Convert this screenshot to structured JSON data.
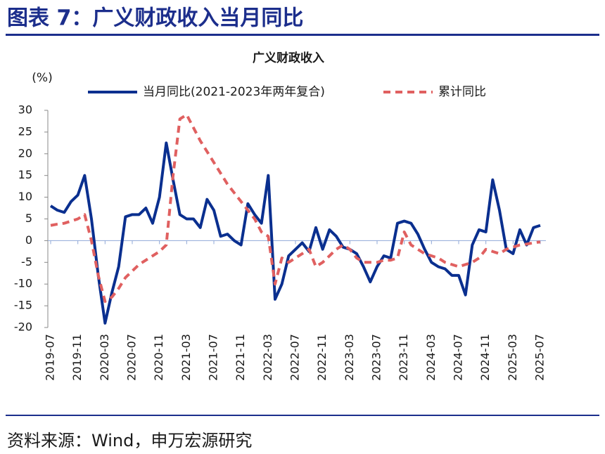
{
  "header": {
    "title": "图表 7：广义财政收入当月同比"
  },
  "chart_data": {
    "type": "line",
    "title": "广义财政收入",
    "ylabel": "(%)",
    "categories": [
      "2019-07",
      null,
      null,
      null,
      "2019-11",
      null,
      null,
      null,
      "2020-03",
      null,
      null,
      null,
      "2020-07",
      null,
      null,
      null,
      "2020-11",
      null,
      null,
      null,
      "2021-03",
      null,
      null,
      null,
      "2021-07",
      null,
      null,
      null,
      "2021-11",
      null,
      null,
      null,
      "2022-03",
      null,
      null,
      null,
      "2022-07",
      null,
      null,
      null,
      "2022-11",
      null,
      null,
      null,
      "2023-03",
      null,
      null,
      null,
      "2023-07",
      null,
      null,
      null,
      "2023-11",
      null,
      null,
      null,
      "2024-03",
      null,
      null,
      null,
      "2024-07",
      null,
      null,
      null,
      "2024-11",
      null,
      null,
      null,
      "2025-03",
      null,
      null,
      null,
      "2025-07"
    ],
    "series": [
      {
        "name": "当月同比(2021-2023年两年复合)",
        "color": "#0a2f8f",
        "style": "solid",
        "values": [
          8,
          7,
          6.5,
          9,
          10.5,
          15,
          5,
          -8,
          -19,
          -12,
          -6,
          5.5,
          6,
          6,
          7.5,
          4,
          10,
          22.5,
          14,
          6,
          5,
          5,
          3,
          9.5,
          7,
          1,
          1.5,
          0,
          -1,
          8.5,
          6,
          4,
          15,
          -13.5,
          -10,
          -3.5,
          -2,
          -0.5,
          -2.5,
          3,
          -2,
          2.5,
          1,
          -1.5,
          -2,
          -3,
          -6,
          -9.5,
          -6,
          -3.5,
          -4,
          4,
          4.5,
          4,
          1.5,
          -2,
          -5,
          -6,
          -6.5,
          -8,
          -8,
          -12.5,
          -1,
          2.5,
          2,
          14,
          7,
          -2,
          -3,
          2.5,
          -1,
          3,
          3.5
        ]
      },
      {
        "name": "累计同比",
        "color": "#e06060",
        "style": "dashed",
        "values": [
          3.5,
          3.8,
          4,
          4.5,
          5,
          6,
          0,
          -8,
          -14,
          -13,
          -11,
          -8.5,
          -7,
          -5.5,
          -4.5,
          -3.5,
          -2.5,
          -1,
          15,
          28,
          29,
          26,
          23,
          20.5,
          18,
          15.5,
          13,
          11,
          9,
          7,
          5,
          2,
          1,
          -10,
          -4,
          -5,
          -4,
          -3,
          -2,
          -6,
          -5,
          -3.5,
          -2,
          -1,
          -2,
          -4,
          -5,
          -5,
          -5,
          -4.5,
          -4.5,
          -4,
          2,
          -1,
          -2,
          -3,
          -3.5,
          -4,
          -5,
          -5.5,
          -6,
          -5.5,
          -5,
          -4,
          -2,
          -2.5,
          -3,
          -2,
          -1.5,
          -1,
          -0.8,
          -0.5,
          -0.3
        ]
      }
    ],
    "ylim": [
      -20,
      30
    ],
    "yticks": [
      -20,
      -15,
      -10,
      -5,
      0,
      5,
      10,
      15,
      20,
      25,
      30
    ]
  },
  "footer": {
    "source": "资料来源：Wind，申万宏源研究"
  }
}
